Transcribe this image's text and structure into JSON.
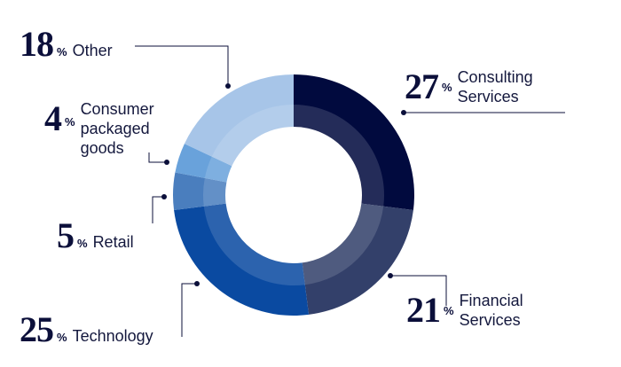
{
  "chart_data": {
    "type": "pie",
    "title": "",
    "unit": "%",
    "categories": [
      "Consulting Services",
      "Financial Services",
      "Technology",
      "Retail",
      "Consumer packaged goods",
      "Other"
    ],
    "values": [
      27,
      21,
      25,
      5,
      4,
      18
    ],
    "colors": [
      "#010a3e",
      "#33406a",
      "#0a4aa1",
      "#4a7ebe",
      "#69a2db",
      "#a7c5e8"
    ]
  },
  "labels": {
    "consulting": {
      "value": "27",
      "pct": "%",
      "name": "Consulting\nServices"
    },
    "financial": {
      "value": "21",
      "pct": "%",
      "name": "Financial\nServices"
    },
    "technology": {
      "value": "25",
      "pct": "%",
      "name": "Technology"
    },
    "retail": {
      "value": "5",
      "pct": "%",
      "name": "Retail"
    },
    "consumer": {
      "value": "4",
      "pct": "%",
      "name": "Consumer\npackaged\ngoods"
    },
    "other": {
      "value": "18",
      "pct": "%",
      "name": "Other"
    }
  }
}
